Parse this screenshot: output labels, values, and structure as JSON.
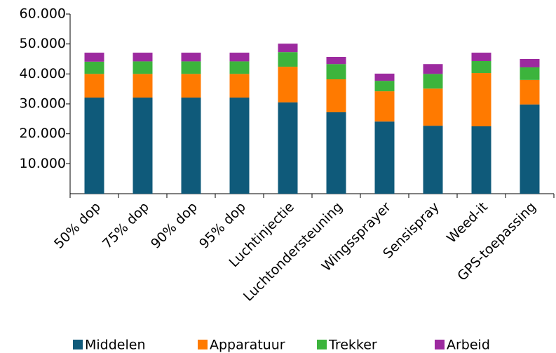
{
  "chart_data": {
    "type": "stacked_bar",
    "categories": [
      "50% dop",
      "75% dop",
      "90% dop",
      "95% dop",
      "Luchtinjectie",
      "Luchtondersteuning",
      "Wingssprayer",
      "Sensispray",
      "Weed-it",
      "GPS-toepassing"
    ],
    "series": [
      {
        "name": "Middelen",
        "color": "#0f5a7a",
        "values": [
          32100,
          32100,
          32100,
          32100,
          30500,
          27200,
          24100,
          22700,
          22500,
          29800
        ]
      },
      {
        "name": "Apparatuur",
        "color": "#ff7a00",
        "values": [
          7900,
          7900,
          7900,
          7900,
          11900,
          11000,
          10100,
          12400,
          17800,
          8200
        ]
      },
      {
        "name": "Trekker",
        "color": "#3cb43c",
        "values": [
          4100,
          4200,
          4200,
          4200,
          4900,
          5100,
          3500,
          4900,
          4000,
          4200
        ]
      },
      {
        "name": "Arbeid",
        "color": "#9c2a9f",
        "values": [
          3000,
          2900,
          2900,
          2900,
          2800,
          2400,
          2400,
          3300,
          2800,
          2800
        ]
      }
    ],
    "ylim": [
      0,
      60000
    ],
    "yticks": [
      {
        "value": 10000,
        "label": "10.000"
      },
      {
        "value": 20000,
        "label": "20.000"
      },
      {
        "value": 30000,
        "label": "30.000"
      },
      {
        "value": 40000,
        "label": "40.000"
      },
      {
        "value": 50000,
        "label": "50.000"
      },
      {
        "value": 60000,
        "label": "60.000"
      }
    ],
    "legend": "bottom"
  }
}
